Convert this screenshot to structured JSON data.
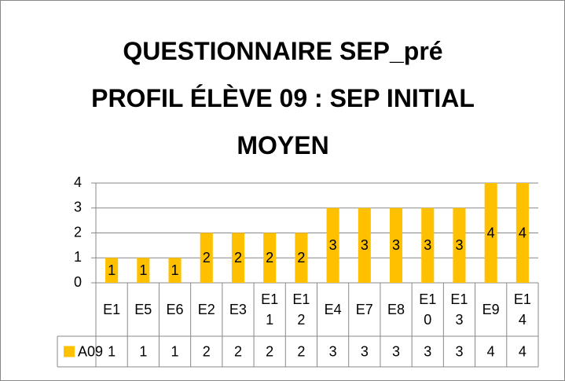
{
  "chart_data": {
    "type": "bar",
    "title": "QUESTIONNAIRE SEP_pré PROFIL ÉLÈVE 09 : SEP INITIAL MOYEN",
    "categories": [
      "E1",
      "E5",
      "E6",
      "E2",
      "E3",
      "E11",
      "E12",
      "E4",
      "E7",
      "E8",
      "E10",
      "E13",
      "E9",
      "E14"
    ],
    "series": [
      {
        "name": "A09",
        "color": "#ffc000",
        "values": [
          1,
          1,
          1,
          2,
          2,
          2,
          2,
          3,
          3,
          3,
          3,
          3,
          4,
          4
        ]
      }
    ],
    "ylim": [
      0,
      4
    ],
    "yticks": [
      0,
      1,
      2,
      3,
      4
    ],
    "grid": true
  }
}
